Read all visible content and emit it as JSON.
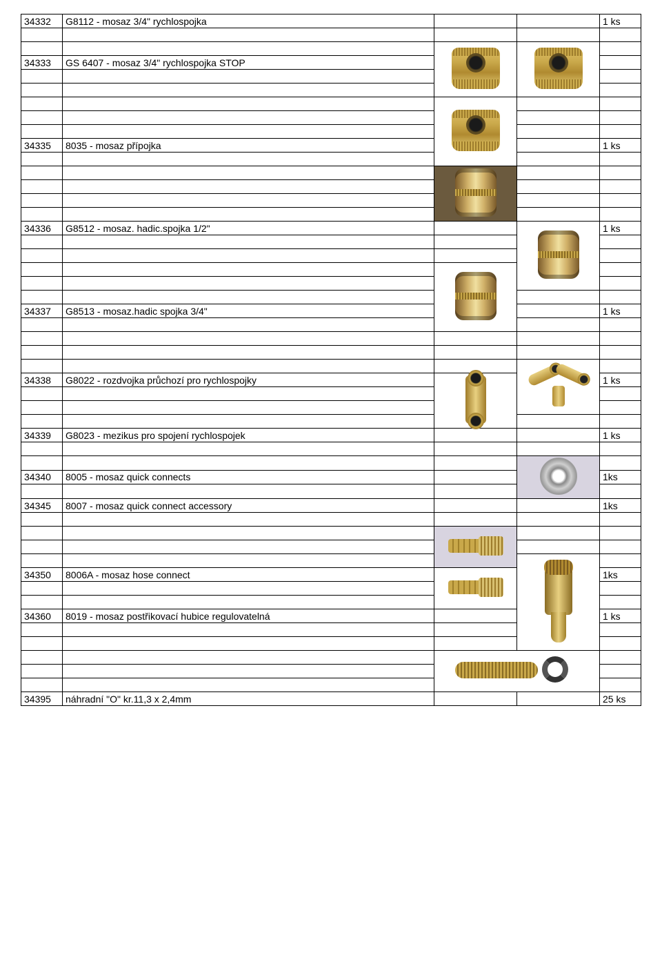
{
  "rows": [
    {
      "code": "34332",
      "desc": "G8112 - mosaz 3/4\" rychlospojka",
      "qty": "1 ks"
    },
    {
      "code": "34333",
      "desc": "GS 6407 - mosaz 3/4\" rychlospojka STOP",
      "qty": ""
    },
    {
      "code": "34335",
      "desc": "8035 - mosaz přípojka",
      "qty": "1 ks"
    },
    {
      "code": "34336",
      "desc": "G8512 - mosaz. hadic.spojka 1/2\"",
      "qty": "1 ks"
    },
    {
      "code": "34337",
      "desc": "G8513 - mosaz.hadic spojka 3/4\"",
      "qty": "1 ks"
    },
    {
      "code": "34338",
      "desc": "G8022 - rozdvojka průchozí pro rychlospojky",
      "qty": "1 ks"
    },
    {
      "code": "34339",
      "desc": "G8023 - mezikus pro spojení rychlospojek",
      "qty": "1 ks"
    },
    {
      "code": "34340",
      "desc": "8005 - mosaz quick connects",
      "qty": "1ks"
    },
    {
      "code": "34345",
      "desc": "8007 - mosaz quick connect accessory",
      "qty": "1ks"
    },
    {
      "code": "34350",
      "desc": "8006A - mosaz hose connect",
      "qty": "1ks"
    },
    {
      "code": "34360",
      "desc": "8019 -  mosaz postřikovací hubice regulovatelná",
      "qty": "1 ks"
    },
    {
      "code": "34395",
      "desc": "náhradní \"O\" kr.11,3 x 2,4mm",
      "qty": "25 ks"
    }
  ]
}
